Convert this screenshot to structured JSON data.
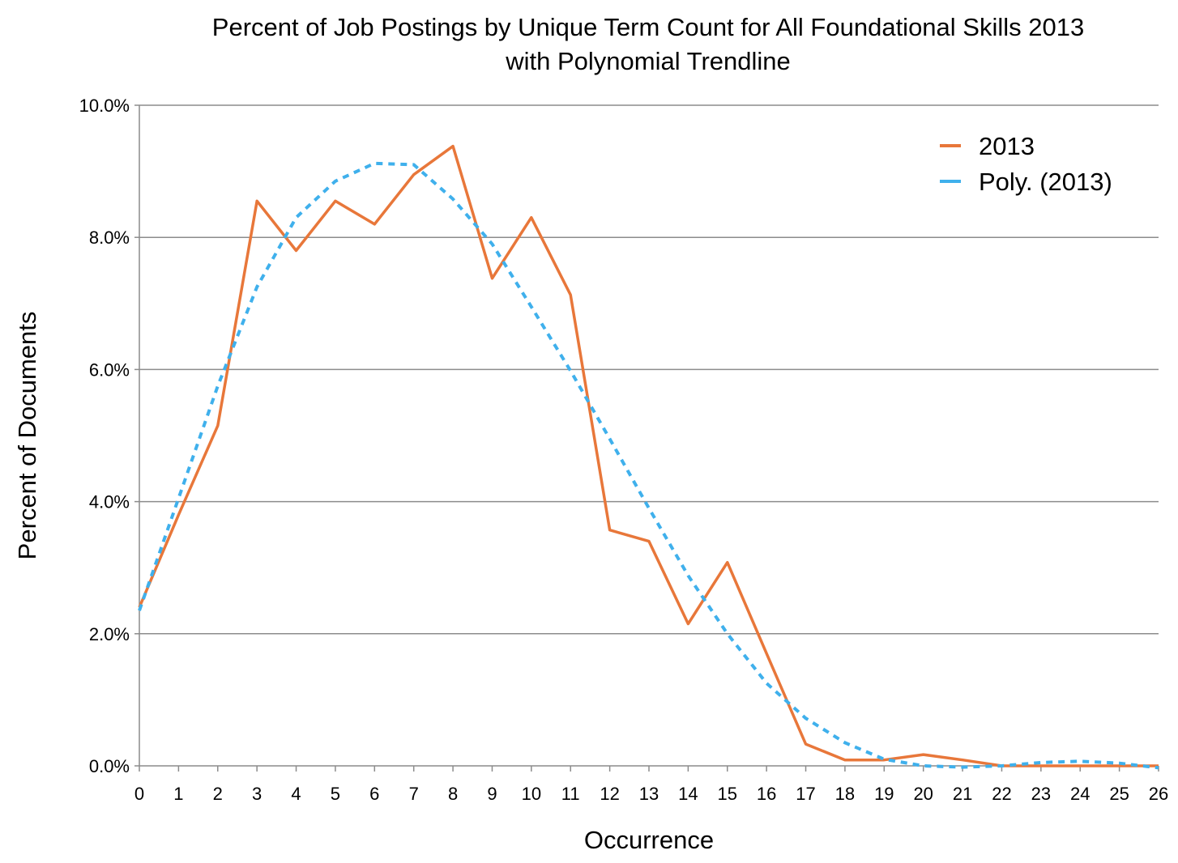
{
  "chart_data": {
    "type": "line",
    "title_line1": "Percent of Job Postings by Unique Term Count for All Foundational Skills 2013",
    "title_line2": "with Polynomial Trendline",
    "xlabel": "Occurrence",
    "ylabel": "Percent of Documents",
    "x": [
      0,
      1,
      2,
      3,
      4,
      5,
      6,
      7,
      8,
      9,
      10,
      11,
      12,
      13,
      14,
      15,
      16,
      17,
      18,
      19,
      20,
      21,
      22,
      23,
      24,
      25,
      26
    ],
    "xlim": [
      0,
      26
    ],
    "ylim": [
      0,
      10
    ],
    "y_tick_labels": [
      "0.0%",
      "2.0%",
      "4.0%",
      "6.0%",
      "8.0%",
      "10.0%"
    ],
    "y_tick_values": [
      0,
      2,
      4,
      6,
      8,
      10
    ],
    "grid": true,
    "legend_position": "top-right",
    "series": [
      {
        "name": "2013",
        "color": "#E8773A",
        "style": "solid",
        "values": [
          2.4,
          3.8,
          5.15,
          8.55,
          7.8,
          8.55,
          8.2,
          8.95,
          9.38,
          7.38,
          8.3,
          7.13,
          3.57,
          3.4,
          2.15,
          3.08,
          1.7,
          0.33,
          0.09,
          0.09,
          0.17,
          0.09,
          0.0,
          0.0,
          0.0,
          0.0,
          0.0
        ]
      },
      {
        "name": "Poly. (2013)",
        "color": "#3FB0EC",
        "style": "dashed",
        "values": [
          2.35,
          4.05,
          5.75,
          7.25,
          8.3,
          8.85,
          9.12,
          9.1,
          8.58,
          7.9,
          6.95,
          5.98,
          4.95,
          3.9,
          2.88,
          2.0,
          1.25,
          0.72,
          0.35,
          0.1,
          0.0,
          -0.02,
          0.0,
          0.05,
          0.07,
          0.04,
          -0.03
        ]
      }
    ]
  }
}
